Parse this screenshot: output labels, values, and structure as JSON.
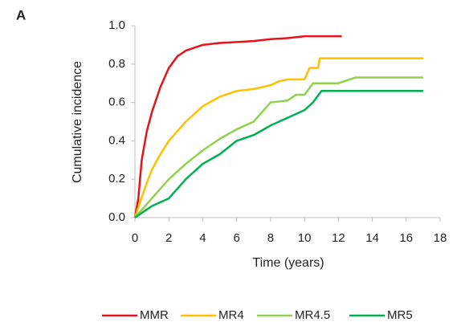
{
  "chart_data": {
    "type": "line",
    "panel_label": "A",
    "x_label": "Time (years)",
    "y_label": "Cumulative incidence",
    "xlim": [
      0,
      18
    ],
    "xticks": [
      0,
      2,
      4,
      6,
      8,
      10,
      12,
      14,
      16,
      18
    ],
    "ylim": [
      0,
      1
    ],
    "yticks": [
      {
        "value": 0,
        "label": "0.0"
      },
      {
        "value": 0.2,
        "label": "0.2"
      },
      {
        "value": 0.4,
        "label": "0.4"
      },
      {
        "value": 0.6,
        "label": "0.6"
      },
      {
        "value": 0.8,
        "label": "0.8"
      },
      {
        "value": 1,
        "label": "1.0"
      }
    ],
    "grid": false,
    "legend": "bottom",
    "series": [
      {
        "name": "MMR",
        "color": "#e8131a",
        "x": [
          0,
          0.2,
          0.4,
          0.7,
          1,
          1.5,
          2,
          2.5,
          3,
          3.5,
          4,
          5,
          6,
          7,
          8,
          9,
          10,
          12.2
        ],
        "values": [
          0,
          0.1,
          0.3,
          0.45,
          0.55,
          0.68,
          0.78,
          0.84,
          0.87,
          0.885,
          0.9,
          0.91,
          0.915,
          0.92,
          0.93,
          0.935,
          0.945,
          0.945
        ]
      },
      {
        "name": "MR4",
        "color": "#ffc000",
        "x": [
          0,
          0.3,
          0.7,
          1,
          1.5,
          2,
          3,
          4,
          5,
          6,
          7,
          8,
          8.5,
          9,
          10,
          10.3,
          10.8,
          10.9,
          17
        ],
        "values": [
          0,
          0.08,
          0.18,
          0.25,
          0.33,
          0.4,
          0.5,
          0.58,
          0.63,
          0.66,
          0.67,
          0.69,
          0.71,
          0.72,
          0.72,
          0.78,
          0.78,
          0.83,
          0.83
        ]
      },
      {
        "name": "MR4.5",
        "color": "#92d050",
        "x": [
          0,
          0.5,
          1,
          2,
          3,
          4,
          5,
          6,
          7,
          7.5,
          8,
          9,
          9.5,
          10,
          10.5,
          12,
          13,
          17
        ],
        "values": [
          0,
          0.05,
          0.1,
          0.2,
          0.28,
          0.35,
          0.41,
          0.46,
          0.5,
          0.55,
          0.6,
          0.61,
          0.64,
          0.64,
          0.7,
          0.7,
          0.73,
          0.73
        ]
      },
      {
        "name": "MR5",
        "color": "#00b050",
        "x": [
          0,
          0.5,
          1,
          2,
          3,
          4,
          5,
          6,
          7,
          8,
          9,
          10,
          10.5,
          11,
          17
        ],
        "values": [
          0,
          0.03,
          0.06,
          0.1,
          0.2,
          0.28,
          0.33,
          0.4,
          0.43,
          0.48,
          0.52,
          0.56,
          0.6,
          0.66,
          0.66
        ]
      }
    ]
  }
}
